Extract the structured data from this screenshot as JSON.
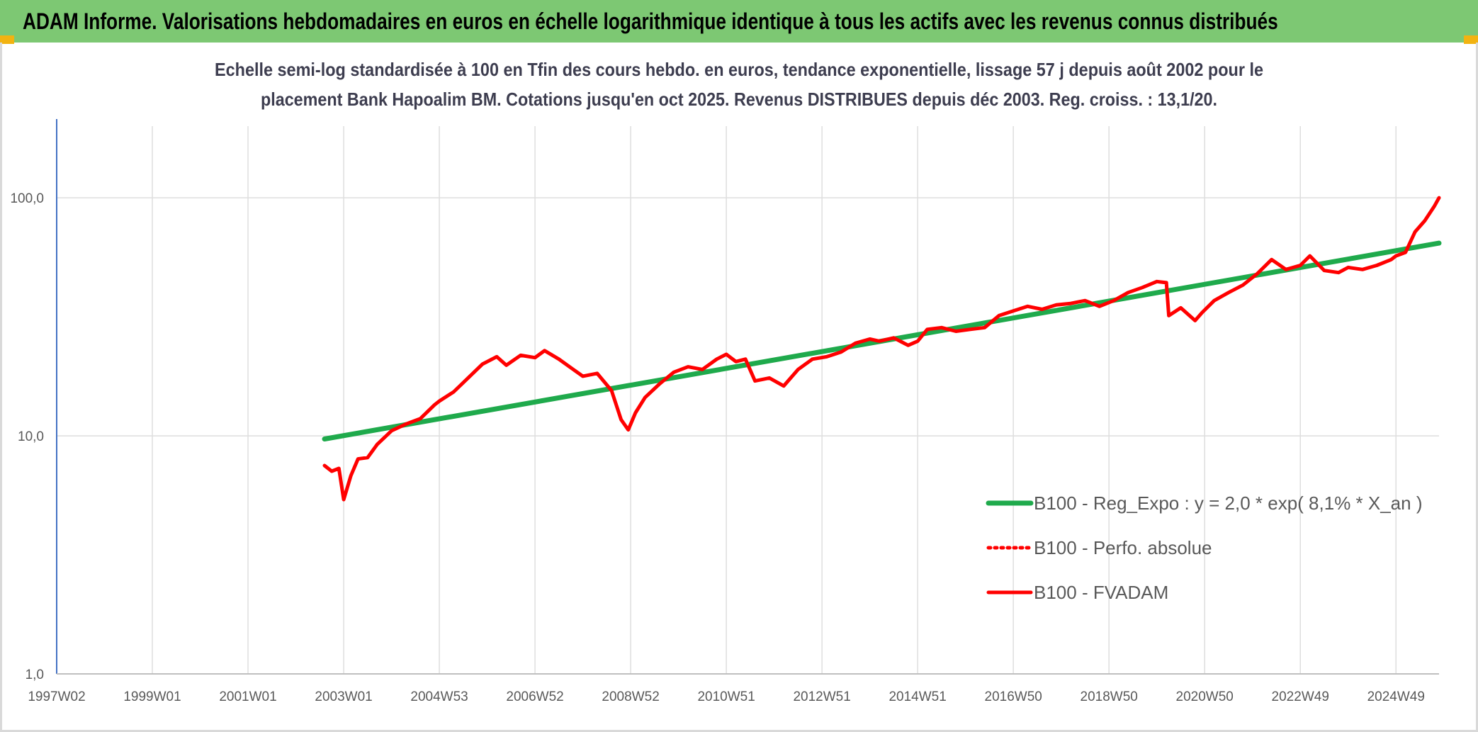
{
  "header": {
    "title": "ADAM Informe. Valorisations hebdomadaires en euros en échelle logarithmique identique à tous les actifs avec les revenus connus distribués"
  },
  "chart_data": {
    "type": "line",
    "title_line1": "Echelle semi-log standardisée à 100 en Tfin des cours hebdo. en euros, tendance exponentielle, lissage 57 j depuis août 2002 pour le",
    "title_line2": "placement Bank Hapoalim BM. Cotations jusqu'en oct 2025. Revenus DISTRIBUES depuis déc 2003. Reg. croiss. : 13,1/20.",
    "y_scale": "log",
    "ylim": [
      1,
      100
    ],
    "y_ticks": [
      {
        "value": 100,
        "label": "100,0"
      },
      {
        "value": 10,
        "label": "10,0"
      },
      {
        "value": 1,
        "label": "1,0"
      }
    ],
    "xlim": [
      1997.0,
      2025.9
    ],
    "x_ticks": [
      {
        "value": 1997.0,
        "label": "1997W02"
      },
      {
        "value": 1999.0,
        "label": "1999W01"
      },
      {
        "value": 2001.0,
        "label": "2001W01"
      },
      {
        "value": 2003.0,
        "label": "2003W01"
      },
      {
        "value": 2005.0,
        "label": "2004W53"
      },
      {
        "value": 2007.0,
        "label": "2006W52"
      },
      {
        "value": 2009.0,
        "label": "2008W52"
      },
      {
        "value": 2011.0,
        "label": "2010W51"
      },
      {
        "value": 2013.0,
        "label": "2012W51"
      },
      {
        "value": 2015.0,
        "label": "2014W51"
      },
      {
        "value": 2017.0,
        "label": "2016W50"
      },
      {
        "value": 2019.0,
        "label": "2018W50"
      },
      {
        "value": 2021.0,
        "label": "2020W50"
      },
      {
        "value": 2023.0,
        "label": "2022W49"
      },
      {
        "value": 2025.0,
        "label": "2024W49"
      }
    ],
    "grid": true,
    "legend_position": "bottom-right",
    "series": [
      {
        "name": "B100 - Reg_Expo : y = 2,0 * exp( 8,1% *  X_an )",
        "color": "#1faa4c",
        "style": "solid",
        "x": [
          2002.6,
          2025.9
        ],
        "y": [
          9.7,
          64.5
        ]
      },
      {
        "name": "B100 - Perfo. absolue",
        "color": "#ff0000",
        "style": "dotted",
        "x": [],
        "y": []
      },
      {
        "name": "B100 - FVADAM",
        "color": "#ff0000",
        "style": "solid",
        "x": [
          2002.6,
          2002.75,
          2002.9,
          2003.0,
          2003.15,
          2003.3,
          2003.5,
          2003.7,
          2004.0,
          2004.3,
          2004.6,
          2004.9,
          2005.0,
          2005.3,
          2005.6,
          2005.9,
          2006.2,
          2006.4,
          2006.7,
          2007.0,
          2007.2,
          2007.5,
          2007.8,
          2008.0,
          2008.3,
          2008.6,
          2008.8,
          2008.95,
          2009.1,
          2009.3,
          2009.6,
          2009.9,
          2010.2,
          2010.5,
          2010.8,
          2011.0,
          2011.2,
          2011.4,
          2011.6,
          2011.9,
          2012.2,
          2012.5,
          2012.8,
          2013.1,
          2013.4,
          2013.7,
          2014.0,
          2014.2,
          2014.5,
          2014.8,
          2015.0,
          2015.2,
          2015.5,
          2015.8,
          2016.1,
          2016.4,
          2016.7,
          2017.0,
          2017.3,
          2017.6,
          2017.9,
          2018.2,
          2018.5,
          2018.8,
          2019.1,
          2019.4,
          2019.7,
          2020.0,
          2020.2,
          2020.25,
          2020.5,
          2020.8,
          2020.95,
          2021.2,
          2021.5,
          2021.8,
          2022.1,
          2022.4,
          2022.7,
          2023.0,
          2023.2,
          2023.5,
          2023.8,
          2024.0,
          2024.3,
          2024.6,
          2024.9,
          2025.0,
          2025.2,
          2025.4,
          2025.6,
          2025.8,
          2025.9
        ],
        "y": [
          7.5,
          7.1,
          7.3,
          5.4,
          6.8,
          8.0,
          8.1,
          9.2,
          10.5,
          11.2,
          11.8,
          13.5,
          14.0,
          15.3,
          17.5,
          20.0,
          21.5,
          19.8,
          21.8,
          21.3,
          22.8,
          21.0,
          19.0,
          17.8,
          18.3,
          15.5,
          11.7,
          10.6,
          12.5,
          14.5,
          16.5,
          18.5,
          19.5,
          19.0,
          21.0,
          22.0,
          20.5,
          21.0,
          17.0,
          17.5,
          16.2,
          19.0,
          21.0,
          21.5,
          22.5,
          24.5,
          25.5,
          25.0,
          25.8,
          24.0,
          25.0,
          28.0,
          28.5,
          27.5,
          28.0,
          28.5,
          32.0,
          33.5,
          35.0,
          34.0,
          35.5,
          36.0,
          37.0,
          35.0,
          37.0,
          40.0,
          42.0,
          44.5,
          44.0,
          32.0,
          34.5,
          30.5,
          33.0,
          37.0,
          40.0,
          43.0,
          48.0,
          55.0,
          50.0,
          52.0,
          57.0,
          49.5,
          48.5,
          51.0,
          50.0,
          52.0,
          55.0,
          57.0,
          59.0,
          72.0,
          80.0,
          92.0,
          100.0
        ]
      }
    ]
  }
}
